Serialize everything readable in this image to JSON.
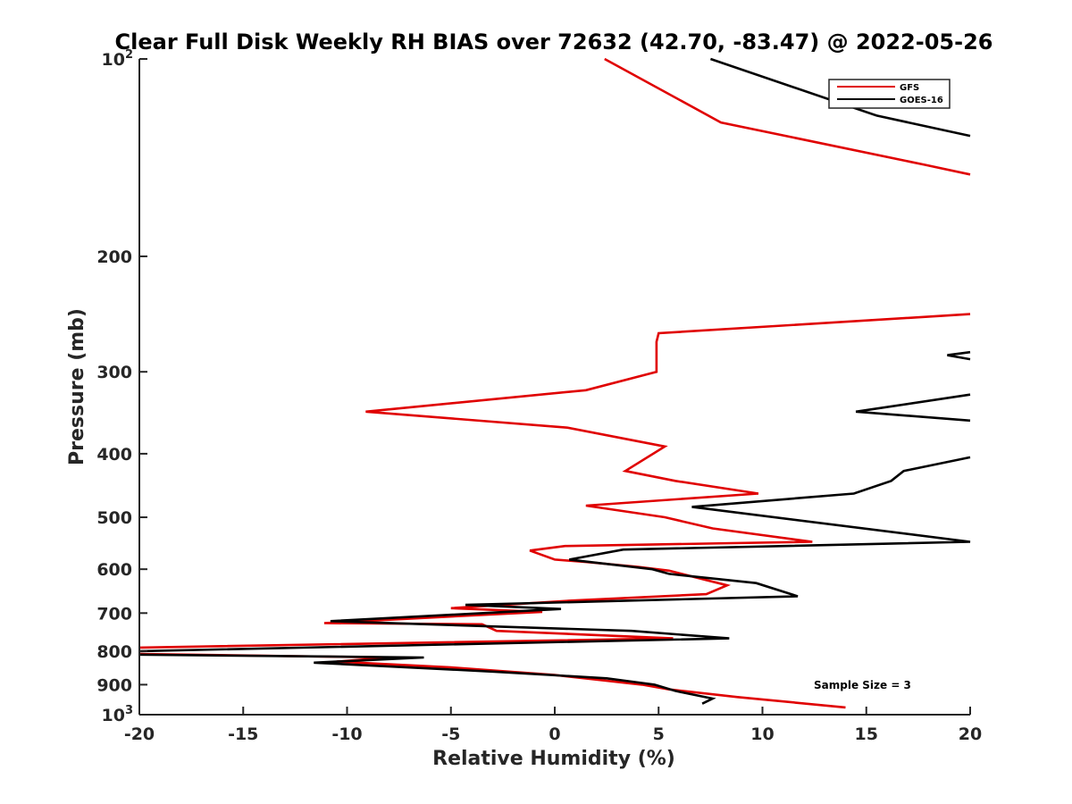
{
  "chart_data": {
    "type": "line",
    "title": "Clear Full Disk Weekly RH BIAS over 72632 (42.70, -83.47) @ 2022-05-26",
    "xlabel": "Relative Humidity (%)",
    "ylabel": "Pressure (mb)",
    "xlim": [
      -20,
      20
    ],
    "ylim": [
      100,
      1000
    ],
    "y_scale": "log",
    "y_reversed": true,
    "grid": false,
    "legend_position": "top-right",
    "x_ticks": [
      -20,
      -15,
      -10,
      -5,
      0,
      5,
      10,
      15,
      20
    ],
    "x_tick_labels": [
      "-20",
      "-15",
      "-10",
      "-5",
      "0",
      "5",
      "10",
      "15",
      "20"
    ],
    "y_ticks": [
      {
        "value": 100,
        "base": "10",
        "exp": "2"
      },
      {
        "value": 200,
        "base": "200",
        "exp": ""
      },
      {
        "value": 300,
        "base": "300",
        "exp": ""
      },
      {
        "value": 400,
        "base": "400",
        "exp": ""
      },
      {
        "value": 500,
        "base": "500",
        "exp": ""
      },
      {
        "value": 600,
        "base": "600",
        "exp": ""
      },
      {
        "value": 700,
        "base": "700",
        "exp": ""
      },
      {
        "value": 800,
        "base": "800",
        "exp": ""
      },
      {
        "value": 900,
        "base": "900",
        "exp": ""
      },
      {
        "value": 1000,
        "base": "10",
        "exp": "3"
      }
    ],
    "annotation": "Sample Size = 3",
    "series": [
      {
        "name": "GFS",
        "color": "#e00000",
        "segments": [
          [
            [
              2.4,
              100
            ],
            [
              8.0,
              125
            ],
            [
              17.8,
              145
            ],
            [
              20,
              150
            ]
          ],
          [
            [
              20,
              245
            ],
            [
              5.0,
              262
            ],
            [
              4.9,
              270
            ],
            [
              4.9,
              300
            ],
            [
              1.5,
              320
            ],
            [
              -9.1,
              345
            ],
            [
              0.6,
              365
            ],
            [
              5.3,
              390
            ],
            [
              3.4,
              425
            ],
            [
              5.8,
              440
            ],
            [
              9.8,
              460
            ],
            [
              1.5,
              480
            ],
            [
              5.3,
              500
            ],
            [
              7.6,
              520
            ],
            [
              12.4,
              545
            ],
            [
              0.5,
              553
            ],
            [
              -1.2,
              562
            ],
            [
              0.0,
              580
            ],
            [
              1.5,
              585
            ],
            [
              4.0,
              595
            ],
            [
              5.5,
              603
            ],
            [
              8.3,
              635
            ],
            [
              7.3,
              655
            ],
            [
              0.8,
              670
            ],
            [
              -5.0,
              688
            ],
            [
              -0.6,
              697
            ],
            [
              -11.1,
              725
            ],
            [
              -3.5,
              728
            ],
            [
              -2.8,
              745
            ],
            [
              5.7,
              765
            ],
            [
              -20,
              790
            ]
          ],
          [
            [
              -20,
              808
            ],
            [
              -8.0,
              818
            ],
            [
              -10.5,
              830
            ],
            [
              -5.0,
              847
            ],
            [
              0.0,
              870
            ],
            [
              4.2,
              900
            ],
            [
              5.5,
              915
            ],
            [
              8.8,
              940
            ],
            [
              14.0,
              975
            ]
          ]
        ]
      },
      {
        "name": "GOES-16",
        "color": "#000000",
        "segments": [
          [
            [
              7.5,
              100
            ],
            [
              15.5,
              122
            ],
            [
              20,
              131
            ]
          ],
          [
            [
              20,
              280
            ],
            [
              18.9,
              283
            ],
            [
              20,
              287
            ]
          ],
          [
            [
              20,
              325
            ],
            [
              14.5,
              345
            ],
            [
              20,
              356
            ]
          ],
          [
            [
              20,
              405
            ],
            [
              16.8,
              425
            ],
            [
              16.2,
              440
            ],
            [
              14.4,
              460
            ],
            [
              6.6,
              482
            ],
            [
              20,
              545
            ],
            [
              3.3,
              560
            ],
            [
              0.7,
              580
            ],
            [
              4.7,
              600
            ],
            [
              5.5,
              610
            ],
            [
              9.7,
              630
            ],
            [
              11.7,
              660
            ],
            [
              -4.3,
              680
            ],
            [
              0.3,
              690
            ],
            [
              -10.8,
              720
            ],
            [
              3.7,
              745
            ],
            [
              8.4,
              765
            ],
            [
              -20,
              800
            ]
          ],
          [
            [
              -20,
              810
            ],
            [
              -6.3,
              818
            ],
            [
              -11.6,
              833
            ],
            [
              -2.9,
              860
            ],
            [
              2.5,
              880
            ],
            [
              4.8,
              900
            ],
            [
              5.8,
              920
            ],
            [
              7.6,
              945
            ],
            [
              7.1,
              962
            ]
          ]
        ]
      }
    ]
  }
}
